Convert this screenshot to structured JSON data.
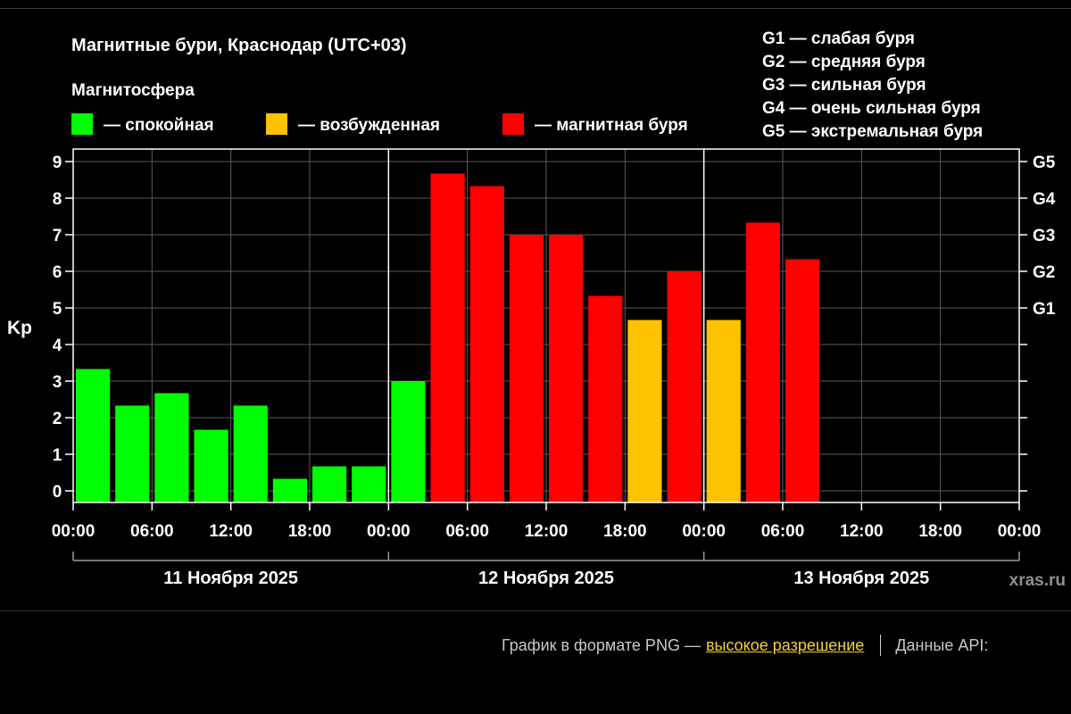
{
  "chart_data": {
    "type": "bar",
    "title": "Магнитные бури, Краснодар (UTC+03)",
    "legend": {
      "title": "Магнитосфера",
      "placement": "top-left",
      "items": [
        {
          "label": "— спокойная",
          "color": "#00ff00"
        },
        {
          "label": "— возбужденная",
          "color": "#ffc200"
        },
        {
          "label": "— магнитная буря",
          "color": "#ff0000"
        }
      ]
    },
    "g_scale_legend": [
      "G1 — слабая буря",
      "G2 — средняя буря",
      "G3 — сильная буря",
      "G4 — очень сильная буря",
      "G5 — экстремальная буря"
    ],
    "ylabel": "Kp",
    "ylim": [
      0,
      9
    ],
    "y_ticks": [
      "0",
      "1",
      "2",
      "3",
      "4",
      "5",
      "6",
      "7",
      "8",
      "9"
    ],
    "right_ticks": [
      {
        "label": "G1",
        "value": 5
      },
      {
        "label": "G2",
        "value": 6
      },
      {
        "label": "G3",
        "value": 7
      },
      {
        "label": "G4",
        "value": 8
      },
      {
        "label": "G5",
        "value": 9
      }
    ],
    "x_tick_labels": [
      "00:00",
      "06:00",
      "12:00",
      "18:00",
      "00:00",
      "06:00",
      "12:00",
      "18:00",
      "00:00",
      "06:00",
      "12:00",
      "18:00",
      "00:00"
    ],
    "day_labels": [
      "11 Ноября 2025",
      "12 Ноября 2025",
      "13 Ноября 2025"
    ],
    "slots_total": 24,
    "slot_hours": 3,
    "grid": true,
    "values": [
      3.33,
      2.33,
      2.67,
      1.67,
      2.33,
      0.33,
      0.67,
      0.67,
      3.0,
      8.67,
      8.33,
      7.0,
      7.0,
      5.33,
      4.67,
      6.0,
      4.67,
      7.33,
      6.33
    ],
    "colors": {
      "calm": "#00ff00",
      "active": "#ffc200",
      "storm": "#ff0000",
      "grid": "#5a5a5a",
      "axis": "#ffffff"
    },
    "watermark": "xras.ru"
  },
  "footer": {
    "png_text": "График в формате PNG —",
    "png_link": "высокое разрешение",
    "api_text": "Данные API:"
  }
}
